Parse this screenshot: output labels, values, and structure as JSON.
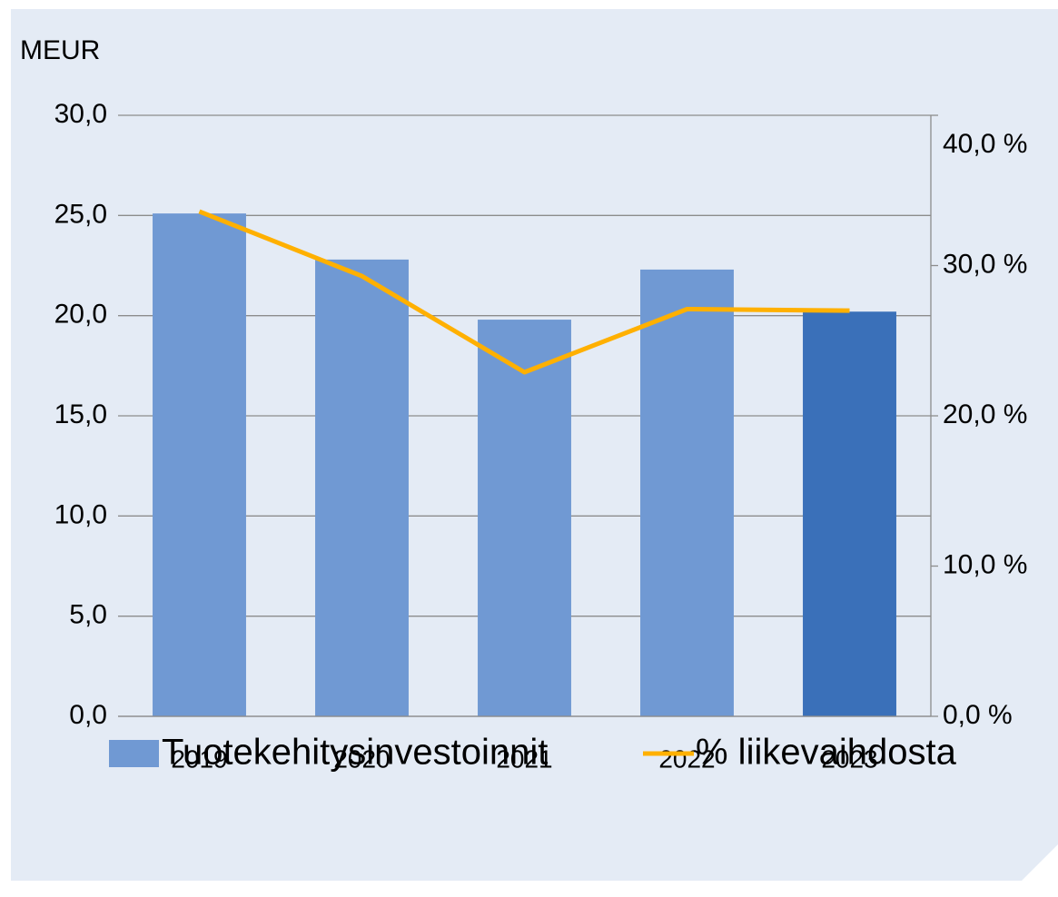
{
  "chart_data": {
    "type": "bar",
    "ylabel": "MEUR",
    "categories": [
      "2019",
      "2020",
      "2021",
      "2022",
      "2023"
    ],
    "series": [
      {
        "name": "Tuotekehitysinvestoinnit",
        "type": "bar",
        "color": "#7099d3",
        "colors": [
          "#7099d3",
          "#7099d3",
          "#7099d3",
          "#7099d3",
          "#3a70b9"
        ],
        "values": [
          25.1,
          22.8,
          19.8,
          22.3,
          20.2
        ]
      },
      {
        "name": "% liikevaihdosta",
        "type": "line",
        "axis": "y2",
        "color": "#ffb000",
        "values": [
          33.6,
          29.3,
          22.9,
          27.1,
          27.0
        ]
      }
    ],
    "ylim": [
      0,
      30
    ],
    "yticks": [
      {
        "value": 0,
        "label": "0,0"
      },
      {
        "value": 5,
        "label": "5,0"
      },
      {
        "value": 10,
        "label": "10,0"
      },
      {
        "value": 15,
        "label": "15,0"
      },
      {
        "value": 20,
        "label": "20,0"
      },
      {
        "value": 25,
        "label": "25,0"
      },
      {
        "value": 30,
        "label": "30,0"
      }
    ],
    "y2lim": [
      0,
      40
    ],
    "y2ticks": [
      {
        "value": 0,
        "label": "0,0 %"
      },
      {
        "value": 10,
        "label": "10,0 %"
      },
      {
        "value": 20,
        "label": "20,0 %"
      },
      {
        "value": 30,
        "label": "30,0 %"
      },
      {
        "value": 40,
        "label": "40,0 %"
      }
    ],
    "grid": true,
    "legend": "bottom"
  }
}
